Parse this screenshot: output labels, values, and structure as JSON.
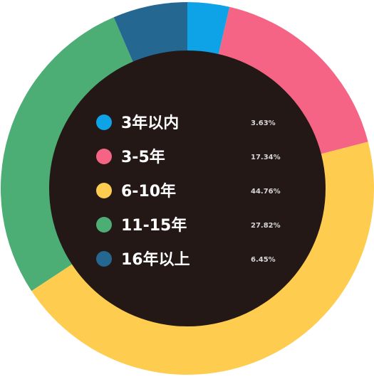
{
  "chart_data": {
    "type": "pie",
    "variant": "donut",
    "center_color": "#231816",
    "legend_placement": "center",
    "title": "",
    "categories": [
      "3年以内",
      "3-5年",
      "6-10年",
      "11-15年",
      "16年以上"
    ],
    "values": [
      3.63,
      17.34,
      44.76,
      27.82,
      6.45
    ],
    "value_labels": [
      "3.63%",
      "17.34%",
      "44.76%",
      "27.82%",
      "6.45%"
    ],
    "colors": [
      "#0ea2e6",
      "#f56485",
      "#fecc4e",
      "#4cae74",
      "#246791"
    ]
  }
}
